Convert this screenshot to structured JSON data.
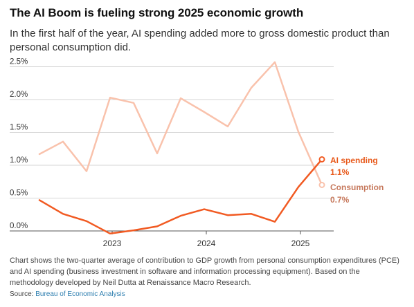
{
  "title": "The AI Boom is fueling strong 2025 economic growth",
  "subtitle": "In the first half of the year, AI spending added more to gross domestic product than personal consumption did.",
  "note": "Chart shows the two-quarter average of contribution to GDP growth from personal consumption expenditures (PCE) and AI spending (business investment in software and information processing equipment). Based on the methodology developed by Neil Dutta at Renaissance Macro Research.",
  "source": {
    "label": "Source:",
    "link_text": "Bureau of Economic Analysis"
  },
  "colors": {
    "ai": "#f15a22",
    "consumption": "#f9c2ac",
    "ai_label": "#e85a1c",
    "consumption_label": "#c77a5e"
  },
  "chart_data": {
    "type": "line",
    "x": [
      "2022 Q2",
      "2022 Q3",
      "2022 Q4",
      "2023 Q1",
      "2023 Q2",
      "2023 Q3",
      "2023 Q4",
      "2024 Q1",
      "2024 Q2",
      "2024 Q3",
      "2024 Q4",
      "2025 Q1",
      "2025 Q2"
    ],
    "yticks": [
      "0.0%",
      "0.5%",
      "1.0%",
      "1.5%",
      "2.0%",
      "2.5%"
    ],
    "xticks": [
      "2023",
      "2024",
      "2025"
    ],
    "ylim": [
      0,
      2.6
    ],
    "grid": true,
    "series": [
      {
        "name": "Consumption",
        "values": [
          1.17,
          1.36,
          0.91,
          2.03,
          1.95,
          1.18,
          2.02,
          1.81,
          1.59,
          2.18,
          2.57,
          1.51,
          0.7
        ],
        "end_label": "0.7%"
      },
      {
        "name": "AI spending",
        "values": [
          0.47,
          0.26,
          0.15,
          -0.04,
          0.01,
          0.07,
          0.23,
          0.33,
          0.24,
          0.26,
          0.14,
          0.67,
          1.09
        ],
        "end_label": "1.1%"
      }
    ]
  }
}
